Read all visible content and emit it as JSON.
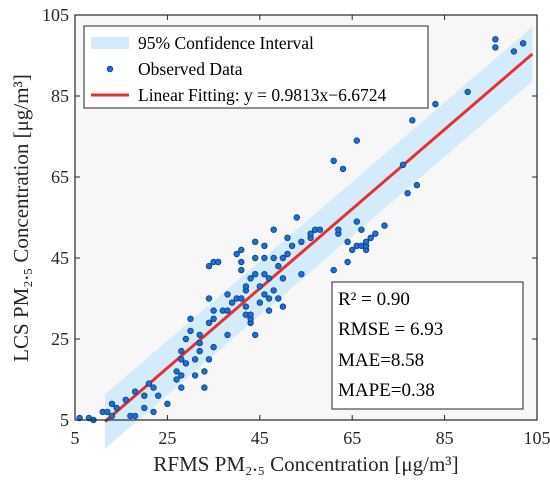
{
  "chart_data": {
    "type": "scatter",
    "xlabel": "RFMS PM₂.₅ Concentration [μg/m³]",
    "ylabel": "LCS PM₂.₅ Concentration [μg/m³]",
    "xlim": [
      5,
      105
    ],
    "ylim": [
      5,
      105
    ],
    "xticks": [
      "5",
      "25",
      "45",
      "65",
      "85",
      "105"
    ],
    "yticks": [
      "5",
      "25",
      "45",
      "65",
      "85",
      "105"
    ],
    "grid": false,
    "legend_position": "top-left",
    "legend": {
      "confidence": "95% Confidence Interval",
      "observed": "Observed Data",
      "fit": "Linear Fitting: y = 0.9813x−6.6724"
    },
    "fit": {
      "slope": 0.9813,
      "intercept": -6.6724,
      "x_range": [
        11.5,
        104
      ]
    },
    "confidence_band": {
      "half_width": 6.7
    },
    "colors": {
      "band": "#d3ebfb",
      "points": "#1f6fd1",
      "point_edge": "#0a3d85",
      "fit": "#e53030",
      "plot_bg": "#f7f7f7"
    },
    "stats": [
      "R² = 0.90",
      "RMSE = 6.93",
      "MAE=8.58",
      "MAPE=0.38"
    ],
    "points": [
      [
        6,
        5.5
      ],
      [
        8,
        5.5
      ],
      [
        9,
        5
      ],
      [
        11,
        7
      ],
      [
        12,
        7
      ],
      [
        13,
        6
      ],
      [
        13,
        9
      ],
      [
        14,
        8
      ],
      [
        16,
        10
      ],
      [
        17,
        6
      ],
      [
        18,
        6
      ],
      [
        20,
        8
      ],
      [
        18,
        12
      ],
      [
        20,
        11
      ],
      [
        22,
        13
      ],
      [
        22,
        7
      ],
      [
        23,
        11
      ],
      [
        21,
        14
      ],
      [
        25,
        9
      ],
      [
        27,
        15
      ],
      [
        27,
        17
      ],
      [
        28,
        13
      ],
      [
        28,
        16
      ],
      [
        28,
        20
      ],
      [
        28,
        22
      ],
      [
        29,
        19
      ],
      [
        29,
        25
      ],
      [
        30,
        27
      ],
      [
        30,
        30
      ],
      [
        31,
        16
      ],
      [
        31,
        20
      ],
      [
        32,
        22
      ],
      [
        32,
        24
      ],
      [
        32,
        26
      ],
      [
        33,
        13
      ],
      [
        33,
        17
      ],
      [
        34,
        20
      ],
      [
        34,
        29
      ],
      [
        34,
        35
      ],
      [
        35,
        23
      ],
      [
        35,
        30
      ],
      [
        35,
        32
      ],
      [
        34,
        43
      ],
      [
        35,
        44
      ],
      [
        36,
        44
      ],
      [
        37,
        32
      ],
      [
        38,
        26
      ],
      [
        38,
        32
      ],
      [
        38,
        36
      ],
      [
        39,
        34
      ],
      [
        40,
        35
      ],
      [
        40,
        46
      ],
      [
        41,
        35
      ],
      [
        41,
        44
      ],
      [
        41,
        47
      ],
      [
        41,
        42
      ],
      [
        42,
        31
      ],
      [
        42,
        33
      ],
      [
        42,
        37
      ],
      [
        42,
        38
      ],
      [
        43,
        29
      ],
      [
        43,
        30
      ],
      [
        43,
        31
      ],
      [
        43,
        40
      ],
      [
        44,
        26
      ],
      [
        44,
        41
      ],
      [
        44,
        45
      ],
      [
        44,
        49
      ],
      [
        45,
        34
      ],
      [
        45,
        38
      ],
      [
        46,
        36
      ],
      [
        46,
        41
      ],
      [
        46,
        45
      ],
      [
        46,
        48
      ],
      [
        47,
        32
      ],
      [
        47,
        35
      ],
      [
        47,
        40
      ],
      [
        48,
        37
      ],
      [
        48,
        45
      ],
      [
        48,
        52
      ],
      [
        49,
        35
      ],
      [
        49,
        43
      ],
      [
        50,
        33
      ],
      [
        50,
        40
      ],
      [
        50,
        45
      ],
      [
        51,
        46
      ],
      [
        51,
        50
      ],
      [
        52,
        48
      ],
      [
        53,
        55
      ],
      [
        54,
        41
      ],
      [
        54,
        49
      ],
      [
        56,
        50
      ],
      [
        56,
        51
      ],
      [
        57,
        52
      ],
      [
        58,
        52
      ],
      [
        61,
        42
      ],
      [
        61,
        69
      ],
      [
        62,
        51
      ],
      [
        62,
        52
      ],
      [
        63,
        67
      ],
      [
        64,
        44
      ],
      [
        64,
        49
      ],
      [
        65,
        47
      ],
      [
        66,
        48
      ],
      [
        66,
        54
      ],
      [
        66,
        74
      ],
      [
        67,
        48
      ],
      [
        67,
        52
      ],
      [
        68,
        47
      ],
      [
        68,
        48
      ],
      [
        68,
        49
      ],
      [
        69,
        50
      ],
      [
        70,
        51
      ],
      [
        72,
        53
      ],
      [
        76,
        68
      ],
      [
        77,
        61
      ],
      [
        78,
        79
      ],
      [
        79,
        63
      ],
      [
        83,
        83
      ],
      [
        90,
        86
      ],
      [
        96,
        97
      ],
      [
        96,
        99
      ],
      [
        100,
        96
      ],
      [
        102,
        98
      ]
    ]
  }
}
